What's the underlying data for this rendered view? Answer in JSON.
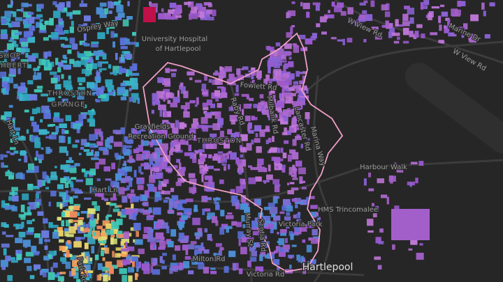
{
  "map": {
    "labels": [
      "Osprey Way",
      "University Hospital",
      "of Hartlepool",
      "SHOP",
      "HBERT",
      "THROSTON",
      "GRANGE",
      "Hart Ln",
      "Hart Ln",
      "Grayfields",
      "Recreation Ground",
      "THROSTON",
      "Fowlett Rd",
      "Raby Rd",
      "Milbank Rd",
      "Lancaster Rd",
      "Marina Way",
      "W View Rd",
      "W View Rd",
      "Marine Dr",
      "Harbour Walk",
      "HMS Trincomalee",
      "Victoria Park",
      "Murray St",
      "Scotia Rd",
      "Milton Rd",
      "Victoria Rd",
      "Hartlepool",
      "Park Rd"
    ]
  }
}
